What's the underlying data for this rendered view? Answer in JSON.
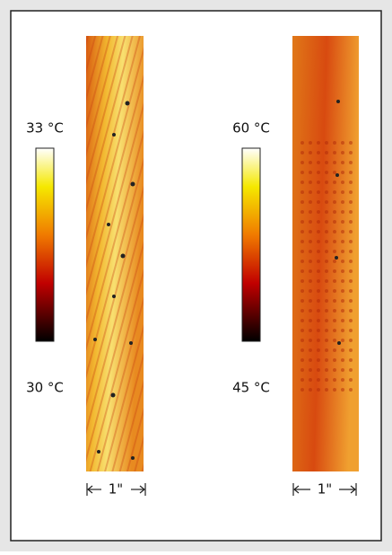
{
  "panels": [
    {
      "colorbar_max": "33 °C",
      "colorbar_min": "30 °C",
      "scale_label": "1\""
    },
    {
      "colorbar_max": "60 °C",
      "colorbar_min": "45 °C",
      "scale_label": "1\""
    }
  ]
}
